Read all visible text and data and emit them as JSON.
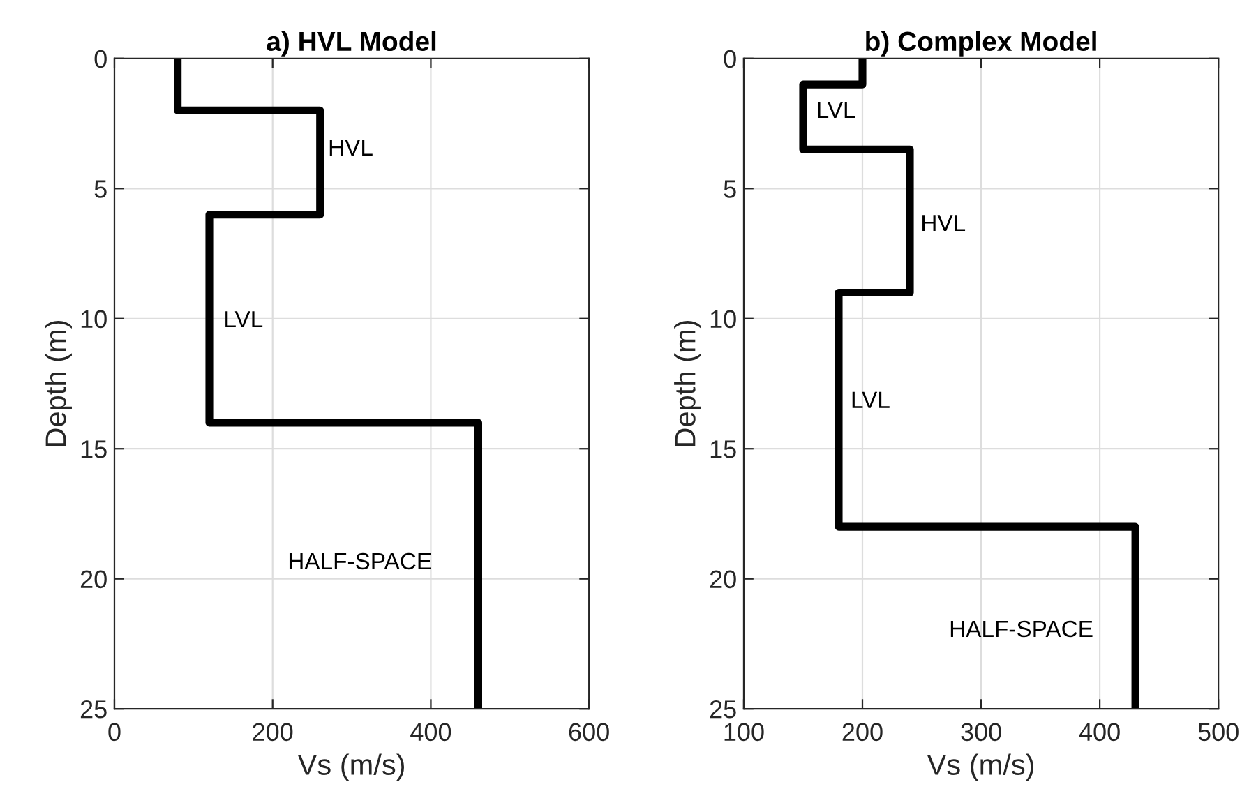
{
  "chart_data": [
    {
      "type": "line",
      "title": "a) HVL Model",
      "xlabel": "Vs (m/s)",
      "ylabel": "Depth (m)",
      "xlim": [
        0,
        600
      ],
      "xticks": [
        0,
        200,
        400,
        600
      ],
      "ylim": [
        25,
        0
      ],
      "yticks": [
        0,
        5,
        10,
        15,
        20,
        25
      ],
      "grid": true,
      "line_style": "solid",
      "series": [
        {
          "color": "#000000",
          "x": [
            80,
            80,
            260,
            260,
            120,
            120,
            460,
            460
          ],
          "values": [
            0,
            2,
            2,
            6,
            6,
            14,
            14,
            25
          ]
        }
      ],
      "annotations": [
        "HVL",
        "LVL",
        "HALF-SPACE"
      ]
    },
    {
      "type": "line",
      "title": "b) Complex Model",
      "xlabel": "Vs (m/s)",
      "ylabel": "Depth (m)",
      "xlim": [
        100,
        500
      ],
      "xticks": [
        100,
        200,
        300,
        400,
        500
      ],
      "ylim": [
        25,
        0
      ],
      "yticks": [
        0,
        5,
        10,
        15,
        20,
        25
      ],
      "grid": true,
      "line_style": "solid",
      "series": [
        {
          "color": "#000000",
          "x": [
            200,
            200,
            150,
            150,
            240,
            240,
            180,
            180,
            430,
            430
          ],
          "values": [
            0,
            1,
            1,
            3.5,
            3.5,
            9,
            9,
            18,
            18,
            25
          ]
        }
      ],
      "annotations": [
        "LVL",
        "HVL",
        "LVL",
        "HALF-SPACE"
      ]
    }
  ]
}
